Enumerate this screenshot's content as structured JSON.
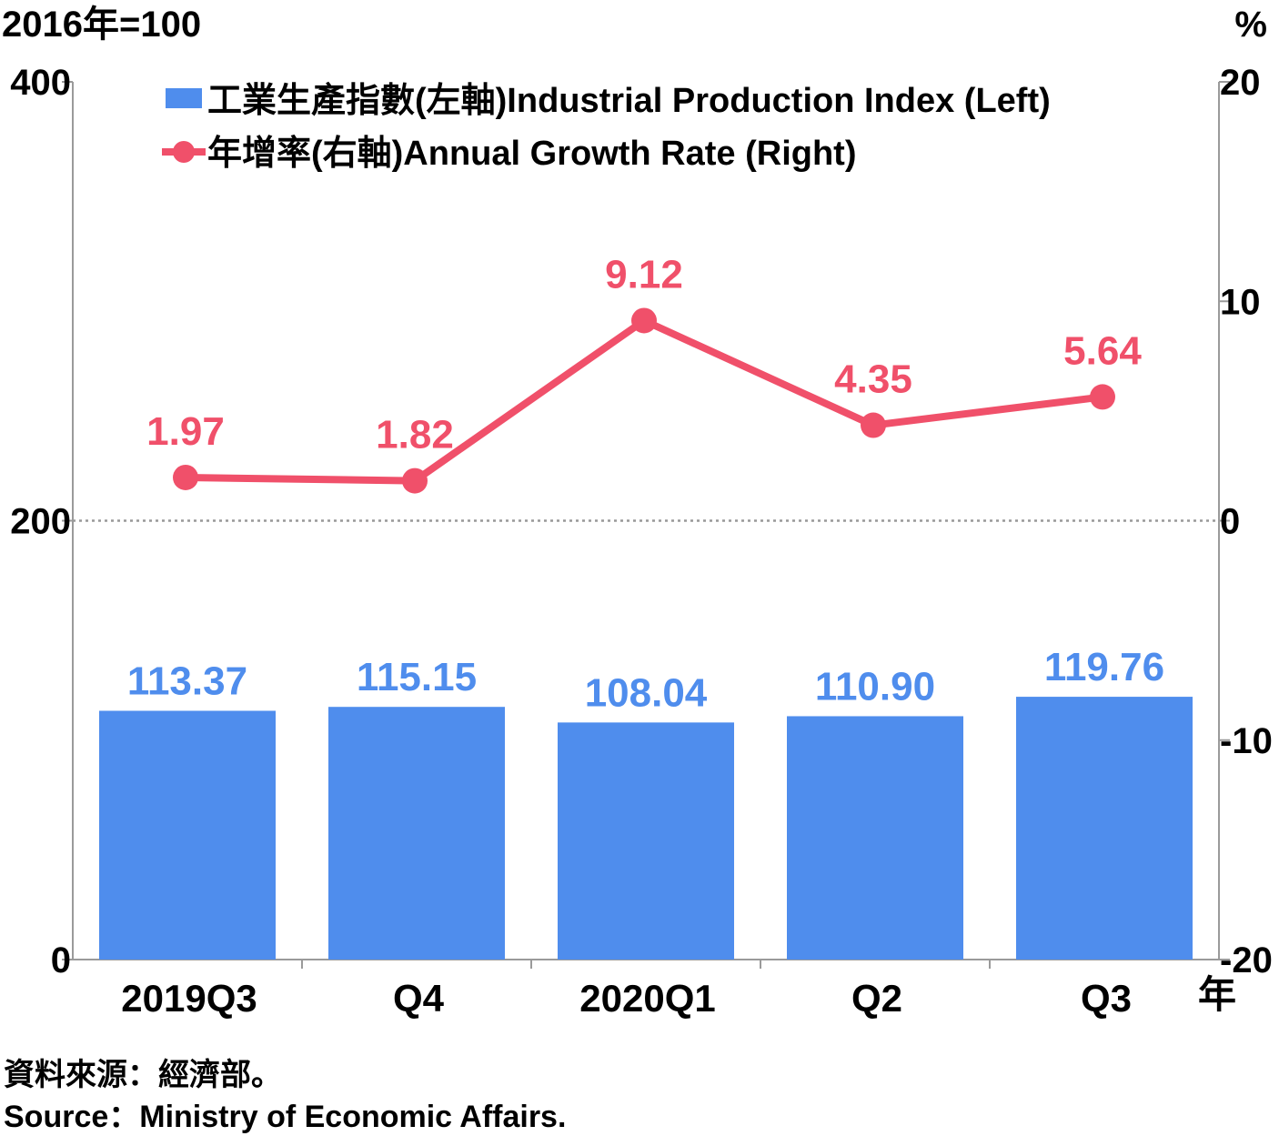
{
  "chart_data": {
    "type": "bar",
    "left_unit": "2016年=100",
    "right_unit": "%",
    "x_unit": "年",
    "categories": [
      "2019Q3",
      "Q4",
      "2020Q1",
      "Q2",
      "Q3"
    ],
    "series": [
      {
        "name": "工業生產指數(左軸)Industrial Production Index (Left)",
        "type": "bar",
        "axis": "left",
        "values": [
          113.37,
          115.15,
          108.04,
          110.9,
          119.76
        ],
        "labels": [
          "113.37",
          "115.15",
          "108.04",
          "110.90",
          "119.76"
        ],
        "color": "#4f8ded"
      },
      {
        "name": "年增率(右軸)Annual Growth Rate (Right)",
        "type": "line",
        "axis": "right",
        "values": [
          1.97,
          1.82,
          9.12,
          4.35,
          5.64
        ],
        "labels": [
          "1.97",
          "1.82",
          "9.12",
          "4.35",
          "5.64"
        ],
        "color": "#f0506a"
      }
    ],
    "left_axis": {
      "ylim": [
        0,
        400
      ],
      "ticks": [
        0,
        200,
        400
      ],
      "tick_labels": [
        "0",
        "200",
        "400"
      ]
    },
    "right_axis": {
      "ylim": [
        -20,
        20
      ],
      "ticks": [
        -20,
        -10,
        0,
        10,
        20
      ],
      "tick_labels": [
        "-20",
        "-10",
        "0",
        "10",
        "20"
      ]
    },
    "zero_reference_line": {
      "axis": "right",
      "value": 0,
      "style": "dotted"
    },
    "legend_position": "top-left"
  },
  "source": {
    "zh": "資料來源：經濟部。",
    "en": "Source：Ministry of Economic Affairs."
  }
}
